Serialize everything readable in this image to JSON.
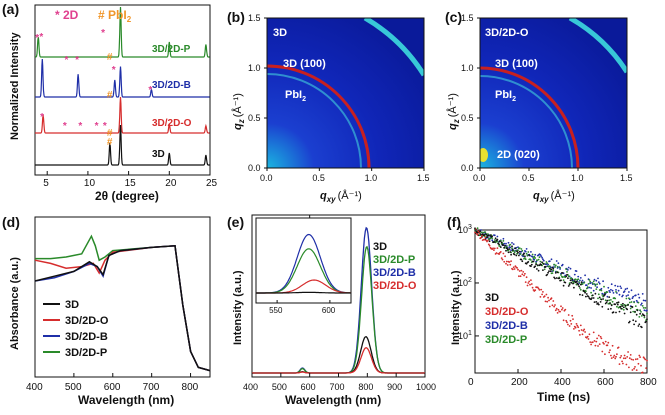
{
  "colors": {
    "black": "#111111",
    "red": "#d62d2d",
    "blue": "#1f2fa8",
    "green": "#2a8a2a",
    "pink": "#e0408f",
    "orange": "#f0962a"
  },
  "panels": {
    "a": {
      "letter": "(a)",
      "legend_2d": "* 2D",
      "legend_pbi2": "# PbI",
      "legend_pbi2_sub": "2",
      "ylabel": "Normalized Intensity",
      "xlabel": "2θ (degree)",
      "xticks": [
        "5",
        "10",
        "15",
        "20",
        "25"
      ],
      "trace_labels": [
        "3D/2D-P",
        "3D/2D-B",
        "3D/2D-O",
        "3D"
      ]
    },
    "b": {
      "letter": "(b)",
      "labels": {
        "corner": "3D",
        "ring": "3D (100)",
        "pbi2": "PbI",
        "pbi2_sub": "2"
      },
      "xlabel": "q",
      "xlabel_sub": "xy",
      "xlabel_unit": "(Å⁻¹)",
      "ylabel": "q",
      "ylabel_sub": "z",
      "ylabel_unit": "(Å⁻¹)",
      "xticks": [
        "0.0",
        "0.5",
        "1.0",
        "1.5"
      ],
      "yticks": [
        "0.0",
        "0.5",
        "1.0",
        "1.5"
      ]
    },
    "c": {
      "letter": "(c)",
      "labels": {
        "corner": "3D/2D-O",
        "ring": "3D (100)",
        "pbi2": "PbI",
        "pbi2_sub": "2",
        "low": "2D (020)"
      },
      "xlabel": "q",
      "xlabel_sub": "xy",
      "xlabel_unit": "(Å⁻¹)",
      "ylabel": "q",
      "ylabel_sub": "z",
      "ylabel_unit": "(Å⁻¹)",
      "xticks": [
        "0.0",
        "0.5",
        "1.0",
        "1.5"
      ],
      "yticks": [
        "0.0",
        "0.5",
        "1.0",
        "1.5"
      ]
    },
    "d": {
      "letter": "(d)",
      "ylabel": "Absorbance (a.u.)",
      "xlabel": "Wavelength (nm)",
      "xticks": [
        "400",
        "500",
        "600",
        "700",
        "800"
      ],
      "legend": [
        "3D",
        "3D/2D-O",
        "3D/2D-B",
        "3D/2D-P"
      ]
    },
    "e": {
      "letter": "(e)",
      "ylabel": "Intensity (a.u.)",
      "xlabel": "Wavelength (nm)",
      "xticks": [
        "400",
        "500",
        "600",
        "700",
        "800",
        "900",
        "1000"
      ],
      "inset_xticks": [
        "550",
        "600"
      ],
      "legend": [
        "3D",
        "3D/2D-P",
        "3D/2D-B",
        "3D/2D-O"
      ]
    },
    "f": {
      "letter": "(f)",
      "ylabel": "Intensity (a.u.)",
      "xlabel": "Time (ns)",
      "xticks": [
        "0",
        "200",
        "400",
        "600",
        "800"
      ],
      "ytick_base": "10",
      "ytick_exps": [
        "1",
        "2",
        "3"
      ],
      "legend": [
        "3D",
        "3D/2D-O",
        "3D/2D-B",
        "3D/2D-P"
      ]
    }
  },
  "chart_data": [
    {
      "type": "line",
      "panel": "a",
      "x_range": [
        3.5,
        25
      ],
      "series": [
        {
          "name": "3D",
          "peaks": [
            [
              12.7,
              0.55
            ],
            [
              14.0,
              1.0
            ],
            [
              20.0,
              0.3
            ],
            [
              24.5,
              0.25
            ]
          ]
        },
        {
          "name": "3D/2D-O",
          "peaks": [
            [
              4.5,
              0.5
            ],
            [
              14.0,
              1.0
            ],
            [
              20.0,
              0.25
            ],
            [
              24.5,
              0.2
            ]
          ]
        },
        {
          "name": "3D/2D-B",
          "peaks": [
            [
              4.4,
              1.0
            ],
            [
              8.8,
              0.6
            ],
            [
              13.3,
              0.45
            ],
            [
              14.0,
              0.8
            ],
            [
              17.8,
              0.2
            ]
          ]
        },
        {
          "name": "3D/2D-P",
          "peaks": [
            [
              3.9,
              0.4
            ],
            [
              14.0,
              1.0
            ],
            [
              20.0,
              0.3
            ],
            [
              24.5,
              0.25
            ]
          ]
        }
      ]
    },
    {
      "type": "heatmap",
      "panel": "b",
      "x_range": [
        0,
        1.5
      ],
      "y_range": [
        0,
        1.5
      ],
      "rings": [
        {
          "q": 1.0,
          "label": "3D (100)"
        },
        {
          "q": 0.9,
          "label": "PbI2"
        }
      ]
    },
    {
      "type": "heatmap",
      "panel": "c",
      "x_range": [
        0,
        1.5
      ],
      "y_range": [
        0,
        1.5
      ],
      "rings": [
        {
          "q": 1.0,
          "label": "3D (100)"
        },
        {
          "q": 0.9,
          "label": "PbI2"
        }
      ]
    },
    {
      "type": "line",
      "panel": "d",
      "x_range": [
        400,
        850
      ],
      "series": [
        {
          "name": "3D",
          "x": [
            400,
            450,
            500,
            540,
            560,
            575,
            590,
            620,
            700,
            760,
            780,
            800,
            820,
            850
          ],
          "y": [
            0.6,
            0.63,
            0.66,
            0.72,
            0.69,
            0.64,
            0.76,
            0.79,
            0.81,
            0.82,
            0.45,
            0.16,
            0.06,
            0.04
          ]
        },
        {
          "name": "3D/2D-O",
          "x": [
            400,
            440,
            480,
            520,
            550,
            565,
            580,
            600,
            700,
            760,
            780,
            800,
            820,
            850
          ],
          "y": [
            0.73,
            0.71,
            0.68,
            0.69,
            0.71,
            0.65,
            0.73,
            0.78,
            0.81,
            0.82,
            0.45,
            0.16,
            0.06,
            0.04
          ]
        },
        {
          "name": "3D/2D-B",
          "x": [
            400,
            450,
            500,
            540,
            560,
            575,
            590,
            620,
            700,
            760,
            780,
            800,
            820,
            850
          ],
          "y": [
            0.6,
            0.62,
            0.66,
            0.71,
            0.69,
            0.63,
            0.76,
            0.79,
            0.81,
            0.82,
            0.45,
            0.16,
            0.06,
            0.04
          ]
        },
        {
          "name": "3D/2D-P",
          "x": [
            400,
            440,
            480,
            520,
            545,
            555,
            565,
            580,
            600,
            700,
            760,
            780,
            800,
            820,
            850
          ],
          "y": [
            0.74,
            0.74,
            0.75,
            0.77,
            0.88,
            0.82,
            0.73,
            0.75,
            0.79,
            0.81,
            0.82,
            0.45,
            0.16,
            0.06,
            0.04
          ]
        }
      ]
    },
    {
      "type": "line",
      "panel": "e",
      "x_range": [
        400,
        1000
      ],
      "series": [
        {
          "name": "3D",
          "peak_center": 795,
          "peak_height": 0.23
        },
        {
          "name": "3D/2D-P",
          "peak_center": 798,
          "peak_height": 0.8
        },
        {
          "name": "3D/2D-B",
          "peak_center": 797,
          "peak_height": 0.92
        },
        {
          "name": "3D/2D-O",
          "peak_center": 796,
          "peak_height": 0.16
        }
      ],
      "inset": {
        "x_range": [
          530,
          620
        ],
        "series": [
          {
            "name": "3D/2D-B",
            "peak_center": 580,
            "peak_height": 0.9
          },
          {
            "name": "3D/2D-P",
            "peak_center": 580,
            "peak_height": 0.68
          },
          {
            "name": "3D/2D-O",
            "peak_center": 585,
            "peak_height": 0.2
          },
          {
            "name": "3D",
            "peak_center": 580,
            "peak_height": 0.01
          }
        ]
      }
    },
    {
      "type": "scatter",
      "panel": "f",
      "x_range": [
        0,
        800
      ],
      "y_log_range": [
        1,
        1000
      ],
      "series": [
        {
          "name": "3D",
          "tau_ns": 190,
          "floor": 3
        },
        {
          "name": "3D/2D-O",
          "tau_ns": 110,
          "floor": 2
        },
        {
          "name": "3D/2D-B",
          "tau_ns": 230,
          "floor": 8
        },
        {
          "name": "3D/2D-P",
          "tau_ns": 210,
          "floor": 5
        }
      ]
    }
  ]
}
